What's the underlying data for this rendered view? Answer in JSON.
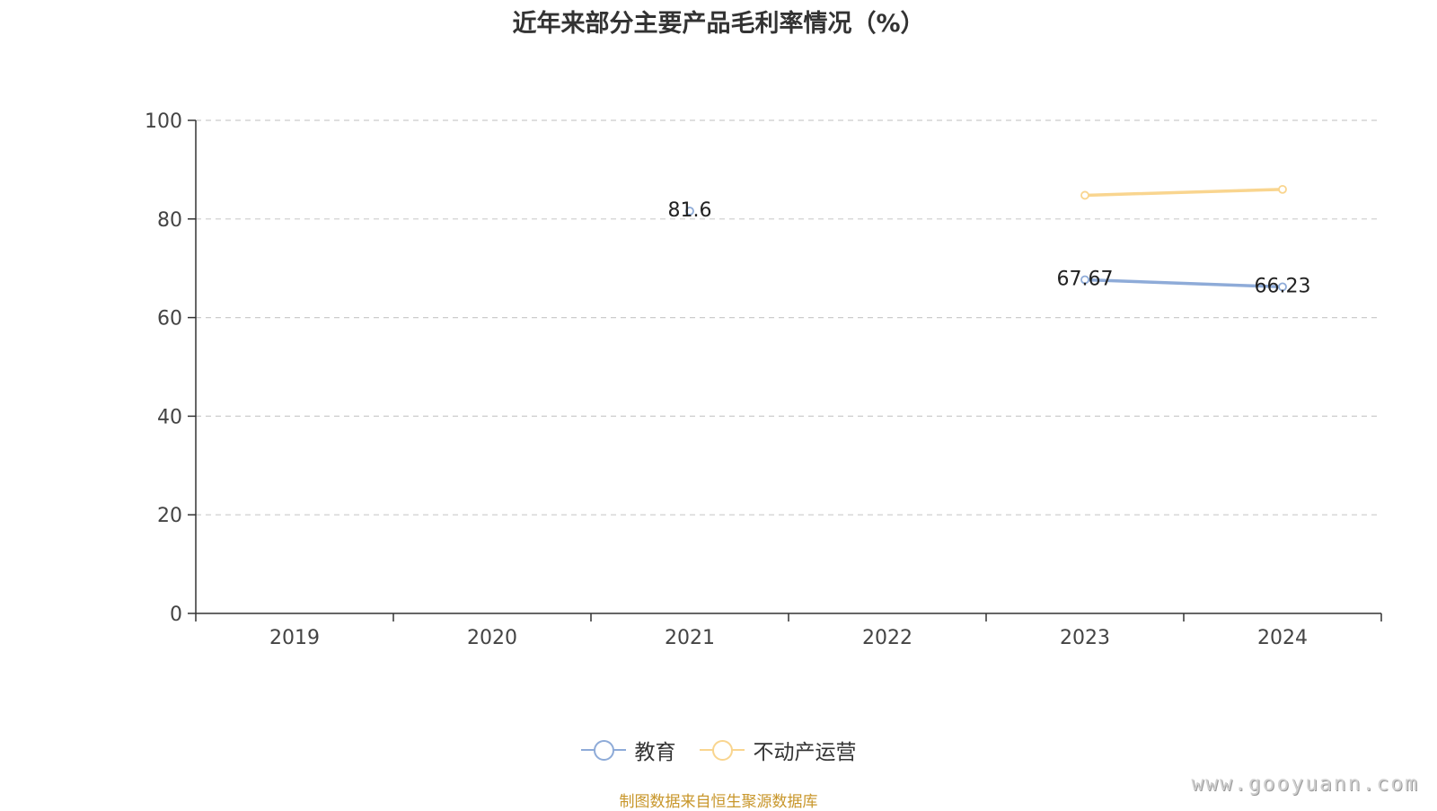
{
  "chart_data": {
    "type": "line",
    "title": "近年来部分主要产品毛利率情况（%）",
    "xlabel": "",
    "ylabel": "",
    "categories": [
      "2019",
      "2020",
      "2021",
      "2022",
      "2023",
      "2024"
    ],
    "ylim": [
      0,
      100
    ],
    "yticks": [
      0,
      20,
      40,
      60,
      80,
      100
    ],
    "grid": "dashed horizontal",
    "legend_position": "bottom-center",
    "series": [
      {
        "name": "教育",
        "color": "#8eabd8",
        "values": [
          null,
          null,
          81.6,
          null,
          67.67,
          66.23
        ],
        "labels": [
          "",
          "",
          "81.6",
          "",
          "67.67",
          "66.23"
        ]
      },
      {
        "name": "不动产运营",
        "color": "#f9d58f",
        "values": [
          null,
          null,
          null,
          null,
          84.8,
          86.0
        ],
        "labels": [
          "",
          "",
          "",
          "",
          "",
          ""
        ]
      }
    ]
  },
  "source_note": "制图数据来自恒生聚源数据库",
  "watermark": "www.gooyuann.com"
}
